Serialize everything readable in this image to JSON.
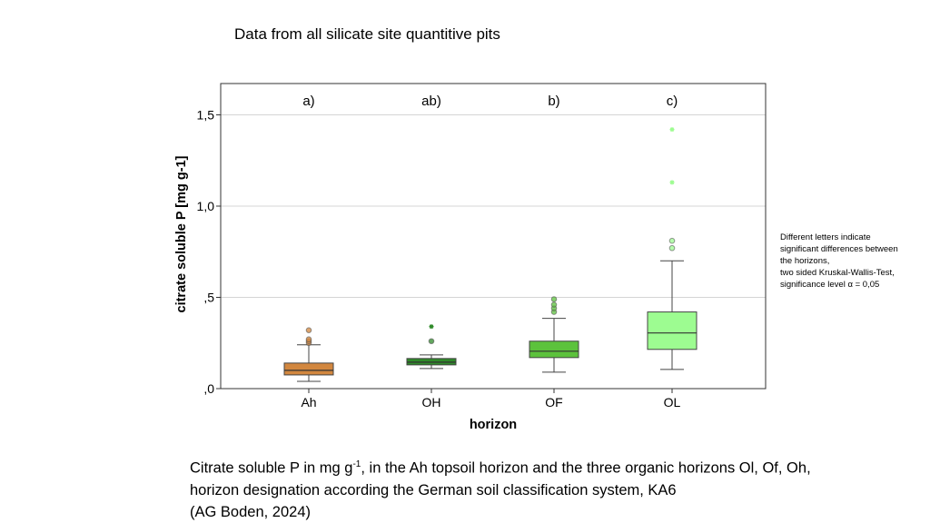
{
  "header": {
    "title": "Data from all silicate site quantitive pits"
  },
  "chart_data": {
    "type": "box",
    "ylabel": "citrate soluble P [mg g-1]",
    "xlabel": "horizon",
    "ylim": [
      0,
      1.65
    ],
    "yticks": [
      {
        "value": 0,
        "label": ",0"
      },
      {
        "value": 0.5,
        "label": ",5"
      },
      {
        "value": 1.0,
        "label": "1,0"
      },
      {
        "value": 1.5,
        "label": "1,5"
      }
    ],
    "grid": "horizontal",
    "categories": [
      "Ah",
      "OH",
      "OF",
      "OL"
    ],
    "significance_letters": [
      "a)",
      "ab)",
      "b)",
      "c)"
    ],
    "colors": [
      "#d2873f",
      "#2f8a2a",
      "#5cc23c",
      "#9dfc91"
    ],
    "boxes": [
      {
        "min": 0.04,
        "q1": 0.075,
        "median": 0.1,
        "q3": 0.14,
        "max": 0.24,
        "outliers": [
          0.25,
          0.26,
          0.27,
          0.32
        ],
        "extremes": []
      },
      {
        "min": 0.11,
        "q1": 0.13,
        "median": 0.145,
        "q3": 0.165,
        "max": 0.185,
        "outliers": [
          0.26
        ],
        "extremes": [
          0.34
        ]
      },
      {
        "min": 0.09,
        "q1": 0.17,
        "median": 0.205,
        "q3": 0.26,
        "max": 0.385,
        "outliers": [
          0.42,
          0.44,
          0.46,
          0.49
        ],
        "extremes": []
      },
      {
        "min": 0.105,
        "q1": 0.215,
        "median": 0.305,
        "q3": 0.42,
        "max": 0.7,
        "outliers": [
          0.77,
          0.81
        ],
        "extremes": [
          1.13,
          1.42
        ]
      }
    ]
  },
  "note": {
    "line1": "Different letters indicate",
    "line2": "significant differences between",
    "line3": "the horizons,",
    "line4": "two sided Kruskal-Wallis-Test,",
    "line5": "significance level α = 0,05"
  },
  "caption": {
    "part1": "Citrate soluble P in mg g",
    "sup": "-1",
    "part2": ", in the Ah topsoil horizon and the three organic horizons Ol, Of, Oh, horizon designation according the German soil classification system, KA6",
    "line3": "(AG Boden, 2024)"
  }
}
